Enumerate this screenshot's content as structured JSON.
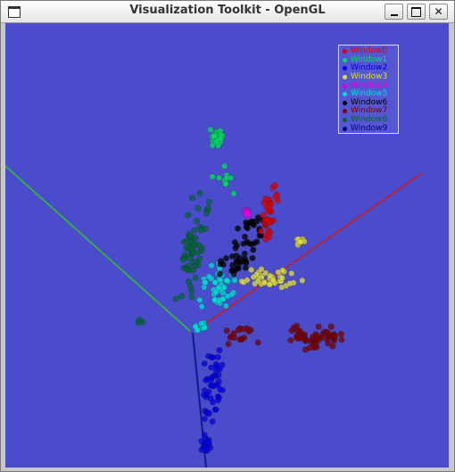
{
  "window": {
    "title": "Visualization Toolkit - OpenGL"
  },
  "icons": {
    "system_menu": "window-icon",
    "minimize": "minimize-icon",
    "maximize": "maximize-icon",
    "close": "close-icon"
  },
  "colors": {
    "background": "#4b4ccb",
    "axis_x": "#d01a1a",
    "axis_y": "#2ec12e",
    "axis_z": "#0b1d8a"
  },
  "legend": {
    "entries": [
      {
        "label": "Window0",
        "color": "#dd0000"
      },
      {
        "label": "Window1",
        "color": "#00dd66"
      },
      {
        "label": "Window2",
        "color": "#0000dd"
      },
      {
        "label": "Window3",
        "color": "#dddd44"
      },
      {
        "label": "Window4",
        "color": "#dd00dd"
      },
      {
        "label": "Window5",
        "color": "#00dddd"
      },
      {
        "label": "Window6",
        "color": "#000000"
      },
      {
        "label": "Window7",
        "color": "#770000"
      },
      {
        "label": "Window8",
        "color": "#006633"
      },
      {
        "label": "Window9",
        "color": "#000088"
      }
    ]
  }
}
